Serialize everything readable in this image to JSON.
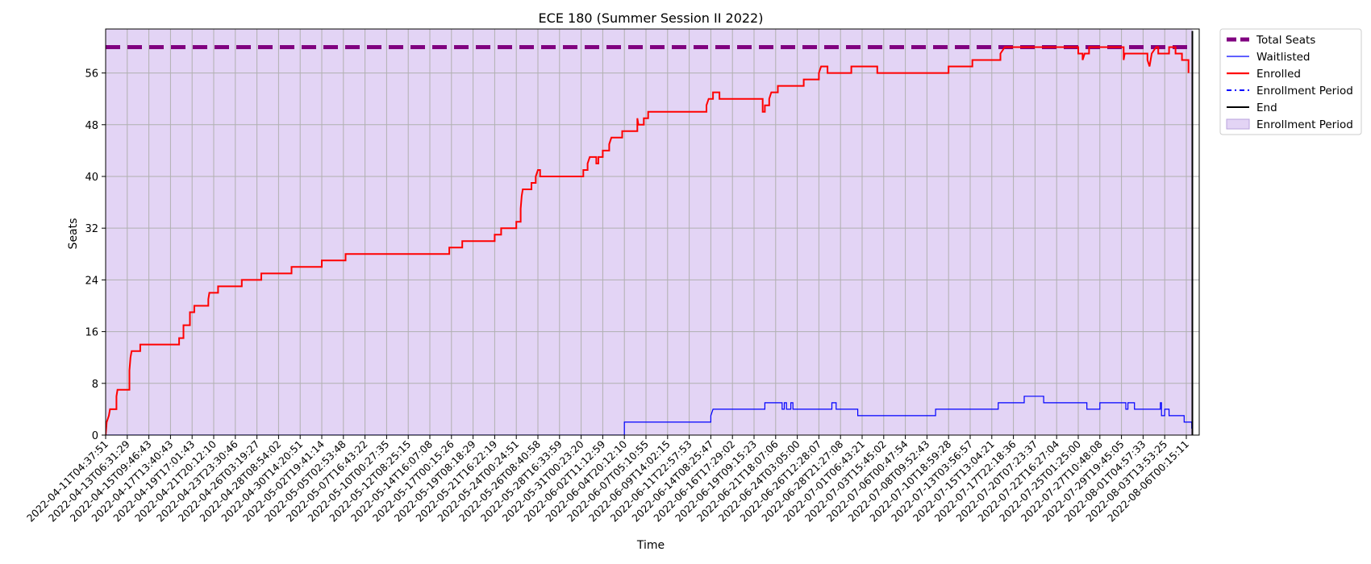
{
  "chart_data": {
    "type": "line",
    "title": "ECE 180 (Summer Session II 2022)",
    "xlabel": "Time",
    "ylabel": "Seats",
    "ylim": [
      0,
      60
    ],
    "yticks": [
      0,
      8,
      16,
      24,
      32,
      40,
      48,
      56
    ],
    "xticks": [
      "2022-04-11T04:37:51",
      "2022-04-13T06:31:29",
      "2022-04-15T09:46:43",
      "2022-04-17T13:40:43",
      "2022-04-19T17:01:43",
      "2022-04-21T20:12:10",
      "2022-04-23T23:30:46",
      "2022-04-26T03:19:27",
      "2022-04-28T08:54:02",
      "2022-04-30T14:20:51",
      "2022-05-02T19:41:14",
      "2022-05-05T02:53:48",
      "2022-05-07T16:43:22",
      "2022-05-10T00:27:35",
      "2022-05-12T08:25:15",
      "2022-05-14T16:07:08",
      "2022-05-17T00:15:26",
      "2022-05-19T08:18:29",
      "2022-05-21T16:22:19",
      "2022-05-24T00:24:51",
      "2022-05-26T08:40:58",
      "2022-05-28T16:33:59",
      "2022-05-31T00:23:20",
      "2022-06-02T11:12:59",
      "2022-06-04T20:12:10",
      "2022-06-07T05:10:55",
      "2022-06-09T14:02:15",
      "2022-06-11T22:57:53",
      "2022-06-14T08:25:47",
      "2022-06-16T17:29:02",
      "2022-06-19T09:15:23",
      "2022-06-21T18:07:06",
      "2022-06-24T03:05:00",
      "2022-06-26T12:28:07",
      "2022-06-28T21:27:08",
      "2022-07-01T06:43:21",
      "2022-07-03T15:45:02",
      "2022-07-06T00:47:54",
      "2022-07-08T09:52:43",
      "2022-07-10T18:59:28",
      "2022-07-13T03:56:57",
      "2022-07-15T13:04:21",
      "2022-07-17T22:18:36",
      "2022-07-20T07:23:37",
      "2022-07-22T16:27:04",
      "2022-07-25T01:25:00",
      "2022-07-27T10:48:08",
      "2022-07-29T19:45:05",
      "2022-08-01T04:57:33",
      "2022-08-03T13:53:25",
      "2022-08-06T00:15:11"
    ],
    "x_index_range": [
      0,
      50.3
    ],
    "grid": true,
    "legend_position": "outside-top-right",
    "legend": [
      "Total Seats",
      "Waitlisted",
      "Enrolled",
      "Enrollment Period",
      "End",
      "Enrollment Period"
    ],
    "series": [
      {
        "name": "Total Seats",
        "style": "dashed-thick",
        "color": "#800080",
        "points": [
          [
            0,
            60
          ],
          [
            50.3,
            60
          ]
        ]
      },
      {
        "name": "Waitlisted",
        "style": "step",
        "color": "#0000ff",
        "points": [
          [
            0,
            0
          ],
          [
            24,
            0
          ],
          [
            24,
            2
          ],
          [
            28,
            2
          ],
          [
            28,
            3
          ],
          [
            28.1,
            4
          ],
          [
            30.5,
            4
          ],
          [
            30.5,
            5
          ],
          [
            31.3,
            5
          ],
          [
            31.3,
            4
          ],
          [
            31.4,
            4
          ],
          [
            31.4,
            5
          ],
          [
            31.5,
            5
          ],
          [
            31.5,
            4
          ],
          [
            31.7,
            4
          ],
          [
            31.7,
            5
          ],
          [
            31.8,
            5
          ],
          [
            31.8,
            4
          ],
          [
            33.6,
            4
          ],
          [
            33.6,
            5
          ],
          [
            33.8,
            5
          ],
          [
            33.8,
            4
          ],
          [
            34.8,
            4
          ],
          [
            34.8,
            3
          ],
          [
            38.4,
            3
          ],
          [
            38.4,
            4
          ],
          [
            41.3,
            4
          ],
          [
            41.3,
            5
          ],
          [
            42.5,
            5
          ],
          [
            42.5,
            6
          ],
          [
            43.4,
            6
          ],
          [
            43.4,
            5
          ],
          [
            45.4,
            5
          ],
          [
            45.4,
            4
          ],
          [
            46,
            4
          ],
          [
            46,
            5
          ],
          [
            47.2,
            5
          ],
          [
            47.2,
            4
          ],
          [
            47.3,
            4
          ],
          [
            47.3,
            5
          ],
          [
            47.6,
            5
          ],
          [
            47.6,
            4
          ],
          [
            48.8,
            4
          ],
          [
            48.8,
            5
          ],
          [
            48.85,
            5
          ],
          [
            48.85,
            3
          ],
          [
            49,
            3
          ],
          [
            49,
            4
          ],
          [
            49.2,
            4
          ],
          [
            49.2,
            3
          ],
          [
            49.9,
            3
          ],
          [
            49.9,
            2
          ],
          [
            50.25,
            2
          ],
          [
            50.25,
            1
          ]
        ]
      },
      {
        "name": "Enrolled",
        "style": "step",
        "color": "#ff0000",
        "points": [
          [
            0,
            0
          ],
          [
            0.05,
            2
          ],
          [
            0.15,
            3
          ],
          [
            0.2,
            4
          ],
          [
            0.5,
            4
          ],
          [
            0.5,
            6
          ],
          [
            0.55,
            7
          ],
          [
            1.1,
            7
          ],
          [
            1.1,
            10
          ],
          [
            1.15,
            12
          ],
          [
            1.2,
            13
          ],
          [
            1.6,
            13
          ],
          [
            1.6,
            14
          ],
          [
            3.4,
            14
          ],
          [
            3.4,
            15
          ],
          [
            3.6,
            15
          ],
          [
            3.6,
            17
          ],
          [
            3.9,
            17
          ],
          [
            3.9,
            19
          ],
          [
            4.1,
            19
          ],
          [
            4.1,
            20
          ],
          [
            4.75,
            20
          ],
          [
            4.75,
            21
          ],
          [
            4.8,
            22
          ],
          [
            5.2,
            22
          ],
          [
            5.2,
            23
          ],
          [
            6.3,
            23
          ],
          [
            6.3,
            24
          ],
          [
            7.2,
            24
          ],
          [
            7.2,
            25
          ],
          [
            8.6,
            25
          ],
          [
            8.6,
            26
          ],
          [
            10.0,
            26
          ],
          [
            10.0,
            27
          ],
          [
            11.1,
            27
          ],
          [
            11.1,
            28
          ],
          [
            15.9,
            28
          ],
          [
            15.9,
            29
          ],
          [
            16.5,
            29
          ],
          [
            16.5,
            30
          ],
          [
            18.0,
            30
          ],
          [
            18.0,
            31
          ],
          [
            18.3,
            31
          ],
          [
            18.3,
            32
          ],
          [
            19.0,
            32
          ],
          [
            19.0,
            33
          ],
          [
            19.2,
            33
          ],
          [
            19.2,
            35
          ],
          [
            19.25,
            37
          ],
          [
            19.3,
            38
          ],
          [
            19.7,
            38
          ],
          [
            19.7,
            39
          ],
          [
            19.9,
            39
          ],
          [
            19.9,
            40
          ],
          [
            20.0,
            41
          ],
          [
            20.1,
            41
          ],
          [
            20.1,
            40
          ],
          [
            22.1,
            40
          ],
          [
            22.1,
            41
          ],
          [
            22.3,
            41
          ],
          [
            22.3,
            42
          ],
          [
            22.4,
            43
          ],
          [
            22.7,
            43
          ],
          [
            22.7,
            42
          ],
          [
            22.8,
            42
          ],
          [
            22.8,
            43
          ],
          [
            23.0,
            43
          ],
          [
            23.0,
            44
          ],
          [
            23.3,
            44
          ],
          [
            23.3,
            45
          ],
          [
            23.4,
            46
          ],
          [
            23.9,
            46
          ],
          [
            23.9,
            47
          ],
          [
            24.6,
            47
          ],
          [
            24.6,
            49
          ],
          [
            24.65,
            48
          ],
          [
            24.9,
            48
          ],
          [
            24.9,
            49
          ],
          [
            25.1,
            49
          ],
          [
            25.1,
            50
          ],
          [
            27.8,
            50
          ],
          [
            27.8,
            51
          ],
          [
            27.9,
            52
          ],
          [
            28.1,
            52
          ],
          [
            28.1,
            53
          ],
          [
            28.4,
            53
          ],
          [
            28.4,
            52
          ],
          [
            30.4,
            52
          ],
          [
            30.4,
            50
          ],
          [
            30.5,
            50
          ],
          [
            30.5,
            51
          ],
          [
            30.7,
            51
          ],
          [
            30.7,
            52
          ],
          [
            30.8,
            53
          ],
          [
            31.1,
            53
          ],
          [
            31.1,
            54
          ],
          [
            32.3,
            54
          ],
          [
            32.3,
            55
          ],
          [
            33.0,
            55
          ],
          [
            33.0,
            56
          ],
          [
            33.1,
            57
          ],
          [
            33.4,
            57
          ],
          [
            33.4,
            56
          ],
          [
            34.5,
            56
          ],
          [
            34.5,
            57
          ],
          [
            35.7,
            57
          ],
          [
            35.7,
            56
          ],
          [
            39.0,
            56
          ],
          [
            39.0,
            57
          ],
          [
            40.1,
            57
          ],
          [
            40.1,
            58
          ],
          [
            41.4,
            58
          ],
          [
            41.4,
            59
          ],
          [
            41.6,
            60
          ],
          [
            45.0,
            60
          ],
          [
            45.0,
            59
          ],
          [
            45.2,
            59
          ],
          [
            45.2,
            58
          ],
          [
            45.3,
            59
          ],
          [
            45.5,
            59
          ],
          [
            45.5,
            60
          ],
          [
            47.1,
            60
          ],
          [
            47.1,
            58
          ],
          [
            47.15,
            59
          ],
          [
            48.2,
            59
          ],
          [
            48.2,
            58
          ],
          [
            48.3,
            57
          ],
          [
            48.4,
            59
          ],
          [
            48.6,
            60
          ],
          [
            48.7,
            60
          ],
          [
            48.7,
            59
          ],
          [
            49.2,
            59
          ],
          [
            49.2,
            60
          ],
          [
            49.5,
            60
          ],
          [
            49.5,
            59
          ],
          [
            49.8,
            59
          ],
          [
            49.8,
            58
          ],
          [
            50.1,
            58
          ],
          [
            50.1,
            56
          ]
        ]
      },
      {
        "name": "Enrollment Period",
        "style": "dashdot",
        "color": "#0000ff",
        "points": [
          [
            -0.1,
            0
          ],
          [
            -0.1,
            60
          ]
        ]
      },
      {
        "name": "End",
        "style": "solid",
        "color": "#000000",
        "points": [
          [
            50.28,
            0
          ],
          [
            50.28,
            62.5
          ]
        ]
      },
      {
        "name": "Enrollment Period",
        "style": "shaded-span",
        "color": "#e3d4f5",
        "span": [
          -0.1,
          50.28
        ]
      }
    ]
  }
}
